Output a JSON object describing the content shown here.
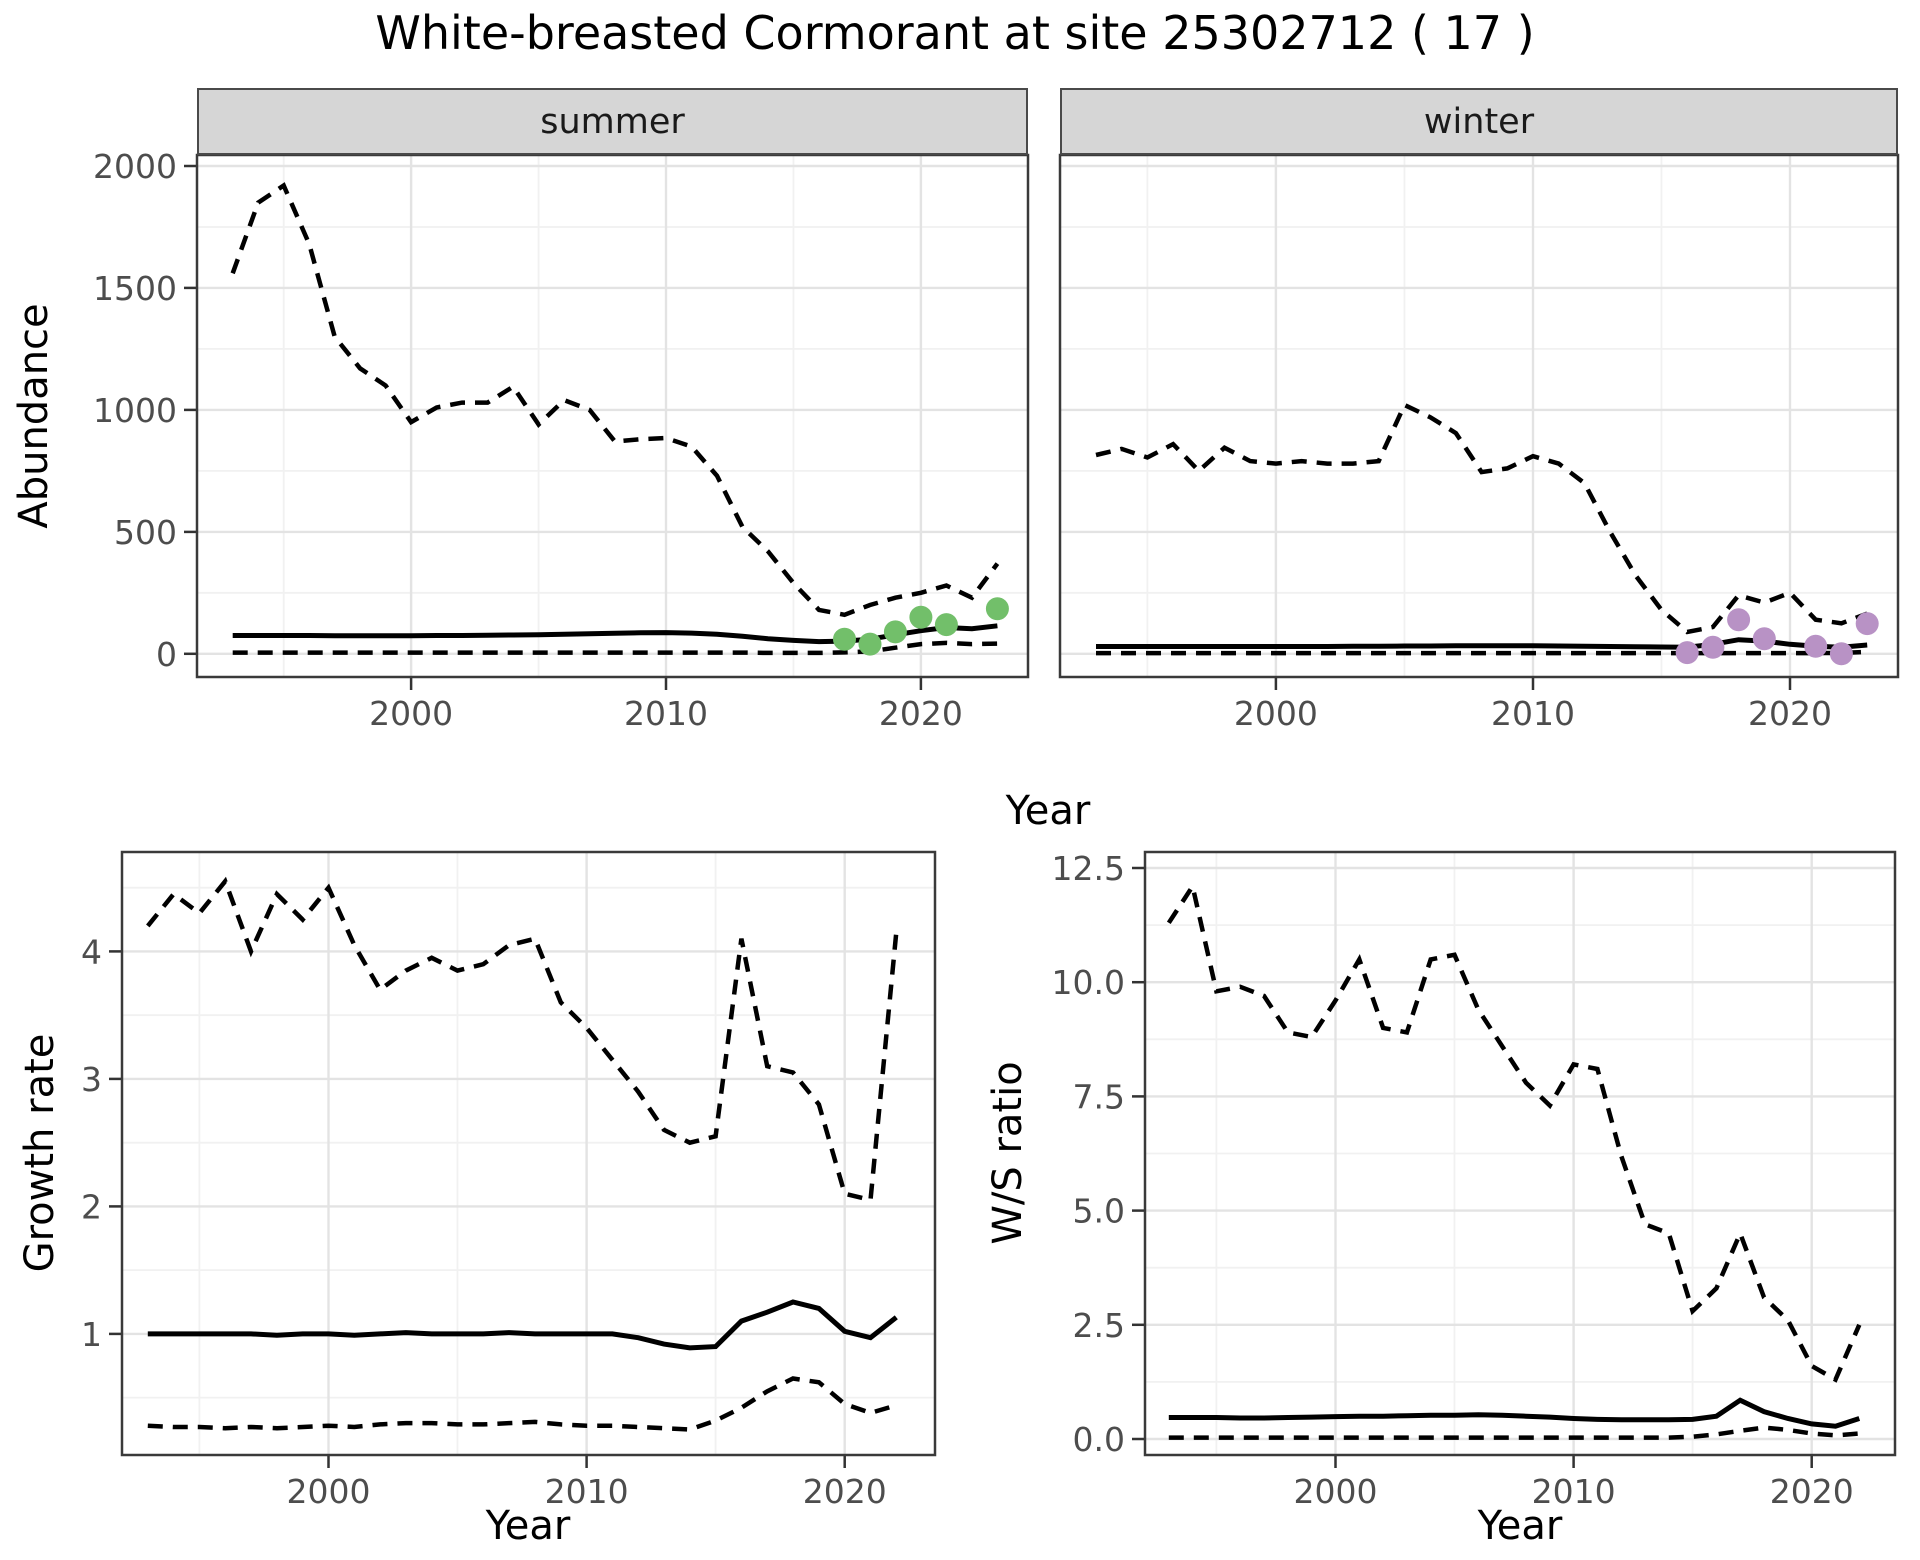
{
  "title": "White-breasted Cormorant at site 25302712 ( 17 )",
  "colors": {
    "line": "#000000",
    "grid_major": "#e3e3e3",
    "grid_minor": "#f1f1f1",
    "panel_border": "#3a3a3a",
    "tick_mark": "#333333",
    "tick_label": "#4d4d4d",
    "strip_bg": "#d6d6d6",
    "summer_points": "#72bf6a",
    "winter_points": "#b892c5"
  },
  "chart_data": [
    {
      "type": "line",
      "facet_label": "summer",
      "xlabel": "Year",
      "ylabel": "Abundance",
      "grid": true,
      "legend": "none",
      "xlim": [
        1991.6,
        2024.2
      ],
      "ylim": [
        -95,
        2045
      ],
      "xticks": {
        "values": [
          2000,
          2010,
          2020
        ],
        "labels": [
          "2000",
          "2010",
          "2020"
        ]
      },
      "yticks": {
        "values": [
          0,
          500,
          1000,
          1500,
          2000
        ],
        "labels": [
          "0",
          "500",
          "1000",
          "1500",
          "2000"
        ]
      },
      "xminor": [
        1995,
        2005,
        2015
      ],
      "yminor": [
        250,
        750,
        1250,
        1750
      ],
      "x": [
        1993,
        1994,
        1995,
        1996,
        1997,
        1998,
        1999,
        2000,
        2001,
        2002,
        2003,
        2004,
        2005,
        2006,
        2007,
        2008,
        2009,
        2010,
        2011,
        2012,
        2013,
        2014,
        2015,
        2016,
        2017,
        2018,
        2019,
        2020,
        2021,
        2022,
        2023
      ],
      "series": [
        {
          "name": "upper-ci",
          "line": "dashed",
          "values": [
            1560,
            1850,
            1920,
            1680,
            1300,
            1170,
            1100,
            950,
            1010,
            1030,
            1030,
            1095,
            940,
            1040,
            1000,
            870,
            880,
            885,
            850,
            730,
            520,
            420,
            290,
            180,
            160,
            200,
            230,
            250,
            280,
            230,
            370
          ]
        },
        {
          "name": "mean",
          "line": "solid",
          "values": [
            75,
            75,
            75,
            75,
            74,
            74,
            74,
            74,
            75,
            75,
            76,
            77,
            78,
            80,
            82,
            84,
            86,
            87,
            85,
            80,
            72,
            62,
            55,
            50,
            52,
            60,
            78,
            95,
            108,
            103,
            115
          ]
        },
        {
          "name": "lower-ci",
          "line": "dashed",
          "values": [
            5,
            5,
            5,
            5,
            5,
            5,
            5,
            5,
            5,
            5,
            5,
            5,
            5,
            5,
            5,
            5,
            5,
            5,
            5,
            5,
            5,
            4,
            4,
            4,
            6,
            10,
            25,
            40,
            45,
            40,
            42
          ]
        }
      ],
      "obs": {
        "name": "observed-counts",
        "color": "#72bf6a",
        "points": [
          [
            2017,
            60
          ],
          [
            2018,
            40
          ],
          [
            2019,
            90
          ],
          [
            2020,
            150
          ],
          [
            2021,
            120
          ],
          [
            2023,
            185
          ]
        ]
      }
    },
    {
      "type": "line",
      "facet_label": "winter",
      "xlabel": "Year",
      "ylabel": "Abundance",
      "grid": true,
      "legend": "none",
      "xlim": [
        1991.6,
        2024.2
      ],
      "ylim": [
        -95,
        2045
      ],
      "xticks": {
        "values": [
          2000,
          2010,
          2020
        ],
        "labels": [
          "2000",
          "2010",
          "2020"
        ]
      },
      "yticks": {
        "values": [
          0,
          500,
          1000,
          1500,
          2000
        ],
        "labels": [
          "0",
          "500",
          "1000",
          "1500",
          "2000"
        ]
      },
      "xminor": [
        1995,
        2005,
        2015
      ],
      "yminor": [
        250,
        750,
        1250,
        1750
      ],
      "x": [
        1993,
        1994,
        1995,
        1996,
        1997,
        1998,
        1999,
        2000,
        2001,
        2002,
        2003,
        2004,
        2005,
        2006,
        2007,
        2008,
        2009,
        2010,
        2011,
        2012,
        2013,
        2014,
        2015,
        2016,
        2017,
        2018,
        2019,
        2020,
        2021,
        2022,
        2023
      ],
      "series": [
        {
          "name": "upper-ci",
          "line": "dashed",
          "values": [
            815,
            840,
            805,
            860,
            750,
            845,
            790,
            780,
            790,
            780,
            780,
            790,
            1020,
            970,
            905,
            745,
            760,
            810,
            780,
            700,
            500,
            320,
            180,
            90,
            110,
            240,
            210,
            250,
            140,
            125,
            165
          ]
        },
        {
          "name": "mean",
          "line": "solid",
          "values": [
            30,
            30,
            30,
            30,
            30,
            30,
            30,
            30,
            30,
            30,
            31,
            31,
            32,
            32,
            33,
            33,
            33,
            33,
            32,
            31,
            30,
            29,
            28,
            27,
            39,
            58,
            52,
            39,
            31,
            27,
            36
          ]
        },
        {
          "name": "lower-ci",
          "line": "dashed",
          "values": [
            3,
            3,
            3,
            3,
            3,
            3,
            3,
            3,
            3,
            3,
            3,
            3,
            3,
            3,
            3,
            3,
            3,
            3,
            3,
            3,
            3,
            3,
            3,
            3,
            3,
            3,
            3,
            3,
            3,
            4,
            8
          ]
        }
      ],
      "obs": {
        "name": "observed-counts",
        "color": "#b892c5",
        "points": [
          [
            2016,
            5
          ],
          [
            2017,
            27
          ],
          [
            2018,
            140
          ],
          [
            2019,
            62
          ],
          [
            2021,
            31
          ],
          [
            2022,
            0
          ],
          [
            2023,
            124
          ]
        ]
      }
    },
    {
      "type": "line",
      "facet_label": null,
      "xlabel": "Year",
      "ylabel": "Growth rate",
      "grid": true,
      "legend": "none",
      "xlim": [
        1992.0,
        2023.5
      ],
      "ylim": [
        0.05,
        4.78
      ],
      "xticks": {
        "values": [
          2000,
          2010,
          2020
        ],
        "labels": [
          "2000",
          "2010",
          "2020"
        ]
      },
      "yticks": {
        "values": [
          1,
          2,
          3,
          4
        ],
        "labels": [
          "1",
          "2",
          "3",
          "4"
        ]
      },
      "xminor": [
        1995,
        2005,
        2015
      ],
      "yminor": [
        0.5,
        1.5,
        2.5,
        3.5,
        4.5
      ],
      "x": [
        1993,
        1994,
        1995,
        1996,
        1997,
        1998,
        1999,
        2000,
        2001,
        2002,
        2003,
        2004,
        2005,
        2006,
        2007,
        2008,
        2009,
        2010,
        2011,
        2012,
        2013,
        2014,
        2015,
        2016,
        2017,
        2018,
        2019,
        2020,
        2021,
        2022
      ],
      "series": [
        {
          "name": "upper-ci",
          "line": "dashed",
          "values": [
            4.2,
            4.45,
            4.3,
            4.55,
            4.0,
            4.45,
            4.25,
            4.5,
            4.05,
            3.7,
            3.85,
            3.95,
            3.85,
            3.9,
            4.05,
            4.1,
            3.6,
            3.4,
            3.15,
            2.9,
            2.6,
            2.5,
            2.55,
            4.1,
            3.1,
            3.05,
            2.8,
            2.1,
            2.05,
            4.15
          ]
        },
        {
          "name": "mean",
          "line": "solid",
          "values": [
            1.0,
            1.0,
            1.0,
            1.0,
            1.0,
            0.99,
            1.0,
            1.0,
            0.99,
            1.0,
            1.01,
            1.0,
            1.0,
            1.0,
            1.01,
            1.0,
            1.0,
            1.0,
            1.0,
            0.97,
            0.92,
            0.89,
            0.9,
            1.1,
            1.17,
            1.25,
            1.2,
            1.02,
            0.97,
            1.13
          ]
        },
        {
          "name": "lower-ci",
          "line": "dashed",
          "values": [
            0.28,
            0.27,
            0.27,
            0.26,
            0.27,
            0.26,
            0.27,
            0.28,
            0.27,
            0.29,
            0.3,
            0.3,
            0.29,
            0.29,
            0.3,
            0.31,
            0.29,
            0.28,
            0.28,
            0.27,
            0.26,
            0.25,
            0.32,
            0.42,
            0.55,
            0.65,
            0.62,
            0.45,
            0.38,
            0.44
          ]
        }
      ],
      "obs": null
    },
    {
      "type": "line",
      "facet_label": null,
      "xlabel": "Year",
      "ylabel": "W/S ratio",
      "grid": true,
      "legend": "none",
      "xlim": [
        1992.0,
        2023.5
      ],
      "ylim": [
        -0.35,
        12.85
      ],
      "xticks": {
        "values": [
          2000,
          2010,
          2020
        ],
        "labels": [
          "2000",
          "2010",
          "2020"
        ]
      },
      "yticks": {
        "values": [
          0,
          2.5,
          5,
          7.5,
          10,
          12.5
        ],
        "labels": [
          "0.0",
          "2.5",
          "5.0",
          "7.5",
          "10.0",
          "12.5"
        ]
      },
      "xminor": [
        1995,
        2005,
        2015
      ],
      "yminor": [
        1.25,
        3.75,
        6.25,
        8.75,
        11.25
      ],
      "x": [
        1993,
        1994,
        1995,
        1996,
        1997,
        1998,
        1999,
        2000,
        2001,
        2002,
        2003,
        2004,
        2005,
        2006,
        2007,
        2008,
        2009,
        2010,
        2011,
        2012,
        2013,
        2014,
        2015,
        2016,
        2017,
        2018,
        2019,
        2020,
        2021,
        2022
      ],
      "series": [
        {
          "name": "upper-ci",
          "line": "dashed",
          "values": [
            11.3,
            12.1,
            9.8,
            9.9,
            9.7,
            8.9,
            8.8,
            9.6,
            10.5,
            9.0,
            8.9,
            10.5,
            10.6,
            9.4,
            8.6,
            7.8,
            7.3,
            8.2,
            8.1,
            6.2,
            4.7,
            4.5,
            2.8,
            3.3,
            4.5,
            3.1,
            2.6,
            1.6,
            1.3,
            2.5
          ]
        },
        {
          "name": "mean",
          "line": "solid",
          "values": [
            0.47,
            0.47,
            0.47,
            0.46,
            0.46,
            0.47,
            0.48,
            0.49,
            0.5,
            0.5,
            0.51,
            0.52,
            0.52,
            0.53,
            0.52,
            0.5,
            0.48,
            0.45,
            0.43,
            0.42,
            0.42,
            0.42,
            0.43,
            0.5,
            0.85,
            0.6,
            0.45,
            0.33,
            0.28,
            0.45
          ]
        },
        {
          "name": "lower-ci",
          "line": "dashed",
          "values": [
            0.03,
            0.03,
            0.03,
            0.03,
            0.03,
            0.03,
            0.03,
            0.03,
            0.03,
            0.03,
            0.03,
            0.03,
            0.03,
            0.03,
            0.03,
            0.03,
            0.03,
            0.03,
            0.03,
            0.03,
            0.03,
            0.03,
            0.05,
            0.1,
            0.18,
            0.25,
            0.2,
            0.12,
            0.08,
            0.12
          ]
        }
      ],
      "obs": null
    }
  ]
}
